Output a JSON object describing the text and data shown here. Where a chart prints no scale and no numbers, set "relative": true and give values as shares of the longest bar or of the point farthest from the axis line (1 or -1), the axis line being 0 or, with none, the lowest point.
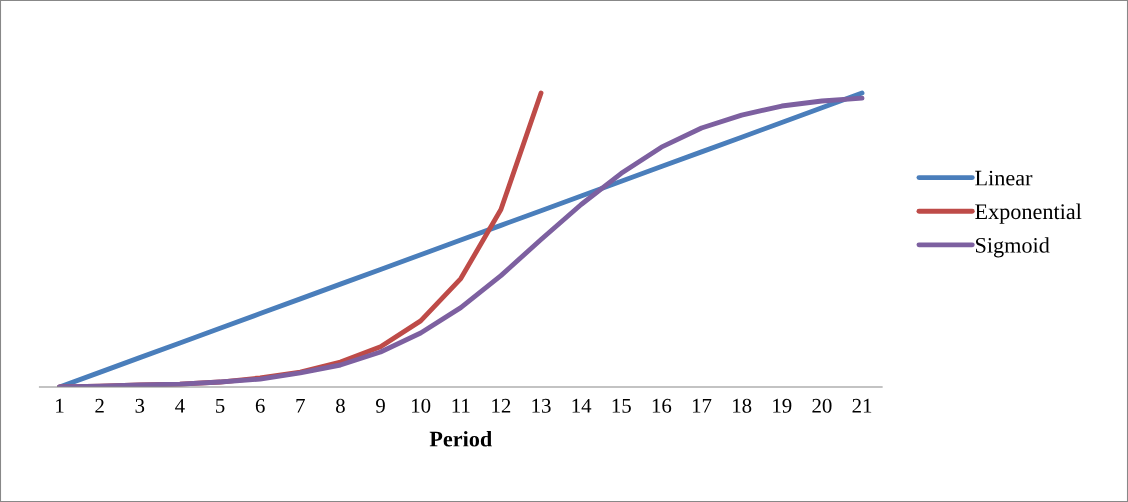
{
  "chart_data": {
    "type": "line",
    "relative": true,
    "xlabel": "Period",
    "legend": "right",
    "grid": false,
    "marker": "none",
    "line_style": "solid",
    "categories": [
      "1",
      "2",
      "3",
      "4",
      "5",
      "6",
      "7",
      "8",
      "9",
      "10",
      "11",
      "12",
      "13",
      "14",
      "15",
      "16",
      "17",
      "18",
      "19",
      "20",
      "21"
    ],
    "series": [
      {
        "name": "Linear",
        "color": "#4a7ebb",
        "values": [
          0,
          0.05,
          0.1,
          0.15,
          0.2,
          0.25,
          0.3,
          0.35,
          0.4,
          0.45,
          0.5,
          0.55,
          0.6,
          0.65,
          0.7,
          0.75,
          0.8,
          0.85,
          0.9,
          0.95,
          1
        ]
      },
      {
        "name": "Exponential",
        "color": "#be4b48",
        "values": [
          0,
          0.003,
          0.007,
          0.01,
          0.017,
          0.031,
          0.051,
          0.085,
          0.137,
          0.225,
          0.369,
          0.604,
          1,
          null,
          null,
          null,
          null,
          null,
          null,
          null,
          null
        ]
      },
      {
        "name": "Sigmoid",
        "color": "#7d60a0",
        "values": [
          0,
          0.003,
          0.007,
          0.01,
          0.017,
          0.027,
          0.048,
          0.075,
          0.119,
          0.184,
          0.27,
          0.379,
          0.502,
          0.621,
          0.727,
          0.816,
          0.881,
          0.925,
          0.956,
          0.973,
          0.983
        ]
      }
    ]
  }
}
